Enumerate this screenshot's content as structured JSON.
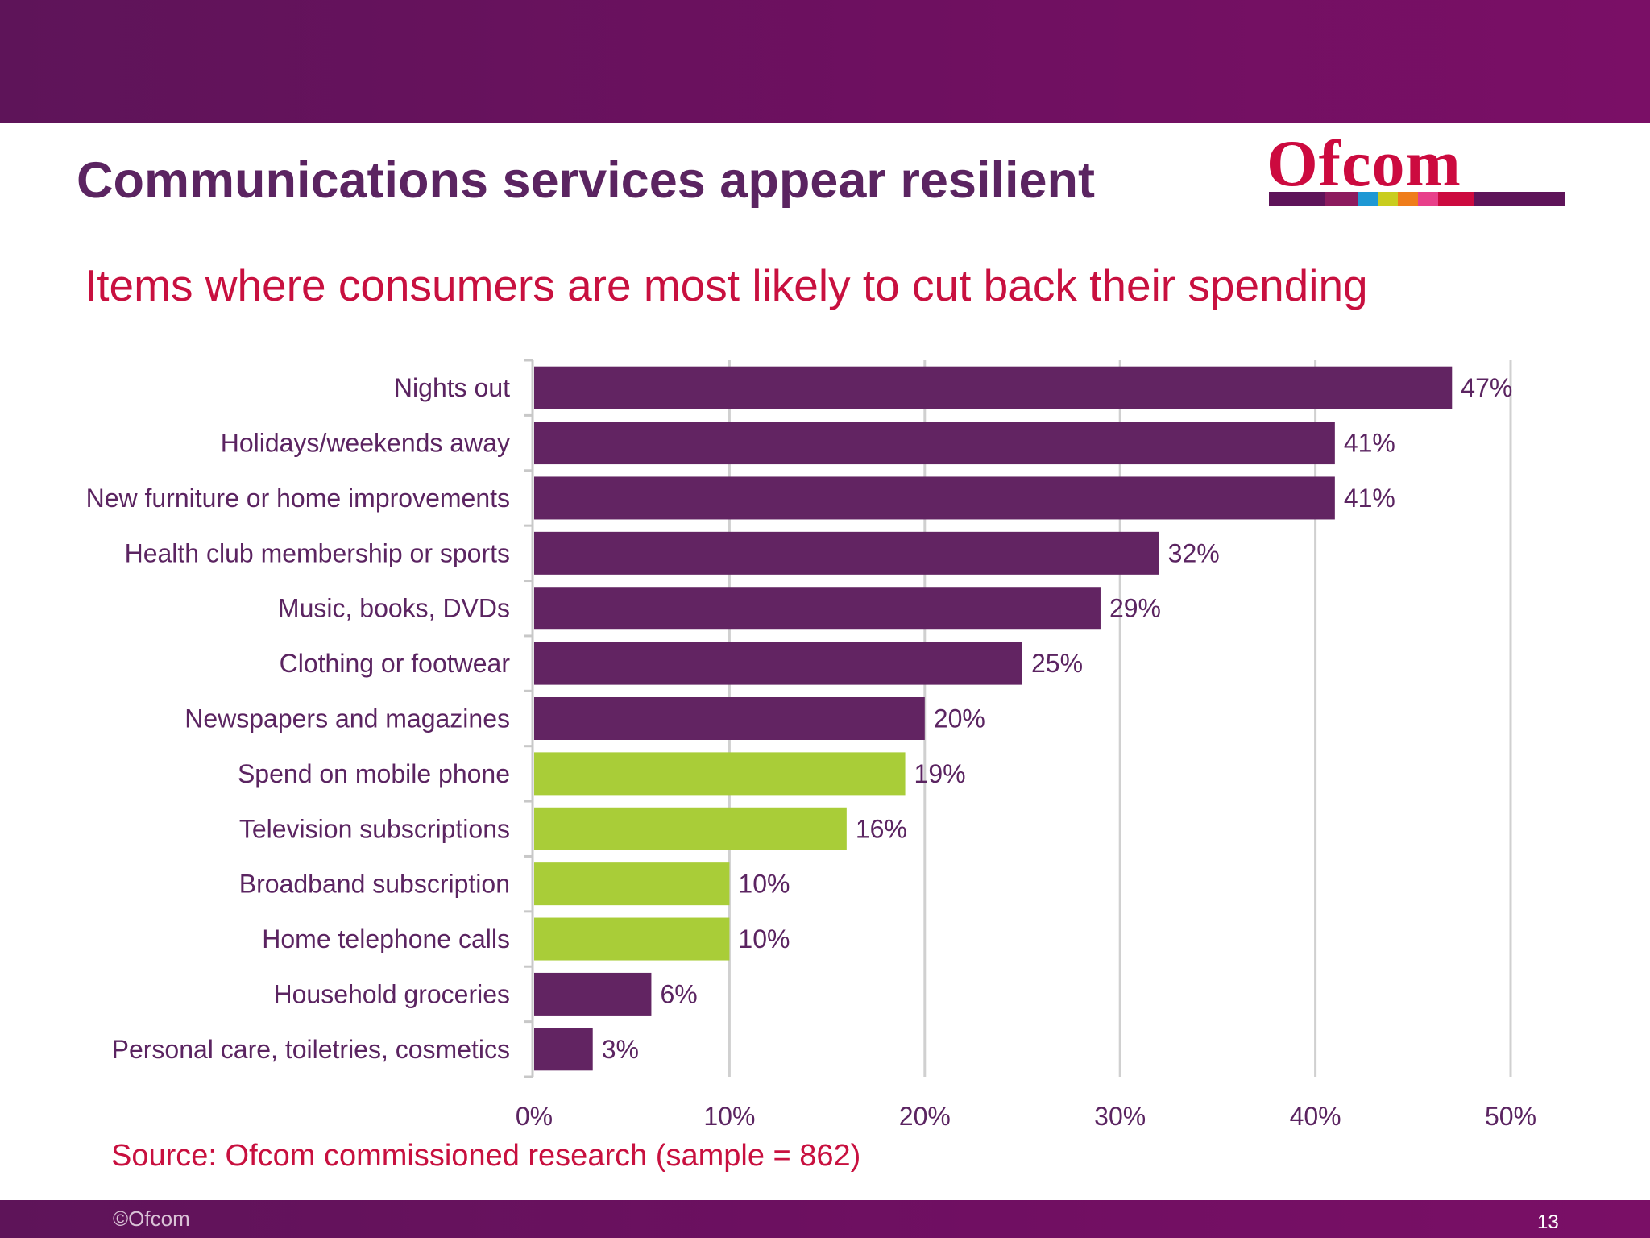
{
  "slide": {
    "title": "Communications services appear resilient",
    "source": "Source: Ofcom commissioned research (sample = 862)",
    "copyright": "©Ofcom",
    "page_number": "13"
  },
  "logo": {
    "text": "Ofcom",
    "stripe_colors": [
      "#5e1459",
      "#8c1b5e",
      "#1e98d4",
      "#c9cd1e",
      "#ef7d1a",
      "#e8408a",
      "#cc0a3f",
      "#5e1459"
    ]
  },
  "colors": {
    "primary_bar": "#622462",
    "highlight_bar": "#a9cd38",
    "gridline": "#d0d0d0",
    "text": "#5b2461",
    "accent_red": "#c8103f"
  },
  "chart_data": {
    "type": "bar",
    "orientation": "horizontal",
    "title": "Items where consumers are most likely to cut back their spending",
    "xlabel": "",
    "ylabel": "",
    "xlim": [
      0,
      50
    ],
    "grid": true,
    "x_ticks": [
      "0%",
      "10%",
      "20%",
      "30%",
      "40%",
      "50%"
    ],
    "categories": [
      "Nights out",
      "Holidays/weekends away",
      "New furniture or home improvements",
      "Health club membership or sports",
      "Music, books, DVDs",
      "Clothing or footwear",
      "Newspapers and magazines",
      "Spend on mobile phone",
      "Television subscriptions",
      "Broadband subscription",
      "Home telephone calls",
      "Household groceries",
      "Personal care, toiletries, cosmetics"
    ],
    "values": [
      47,
      41,
      41,
      32,
      29,
      25,
      20,
      19,
      16,
      10,
      10,
      6,
      3
    ],
    "value_labels": [
      "47%",
      "41%",
      "41%",
      "32%",
      "29%",
      "25%",
      "20%",
      "19%",
      "16%",
      "10%",
      "10%",
      "6%",
      "3%"
    ],
    "highlighted": [
      false,
      false,
      false,
      false,
      false,
      false,
      false,
      true,
      true,
      true,
      true,
      false,
      false
    ]
  }
}
